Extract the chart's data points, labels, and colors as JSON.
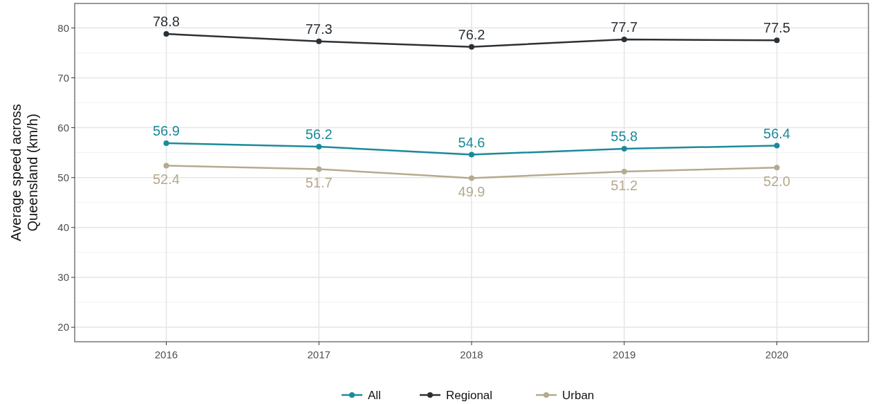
{
  "chart_data": {
    "type": "line",
    "ylabel": "Average speed across\nQueensland (km/h)",
    "categories": [
      "2016",
      "2017",
      "2018",
      "2019",
      "2020"
    ],
    "series": [
      {
        "name": "All",
        "color": "#1a8a9a",
        "values": [
          56.9,
          56.2,
          54.6,
          55.8,
          56.4
        ],
        "value_labels": [
          "56.9",
          "56.2",
          "54.6",
          "55.8",
          "56.4"
        ]
      },
      {
        "name": "Regional",
        "color": "#2b3035",
        "values": [
          78.8,
          77.3,
          76.2,
          77.7,
          77.5
        ],
        "value_labels": [
          "78.8",
          "77.3",
          "76.2",
          "77.7",
          "77.5"
        ]
      },
      {
        "name": "Urban",
        "color": "#b5aa8f",
        "values": [
          52.4,
          51.7,
          49.9,
          51.2,
          52.0
        ],
        "value_labels": [
          "52.4",
          "51.7",
          "49.9",
          "51.2",
          "52.0"
        ]
      }
    ],
    "ylim": [
      17.1,
      84.9
    ],
    "yticks": [
      20,
      {
        "value": 25,
        "label": null
      },
      30,
      {
        "value": 35,
        "label": null
      },
      40,
      {
        "value": 45,
        "label": null
      },
      50,
      {
        "value": 55,
        "label": null
      },
      60,
      {
        "value": 65,
        "label": null
      },
      70,
      {
        "value": 75,
        "label": null
      },
      80
    ],
    "grid": true,
    "legend": "bottom",
    "marker": "circle",
    "line_style": "solid"
  }
}
